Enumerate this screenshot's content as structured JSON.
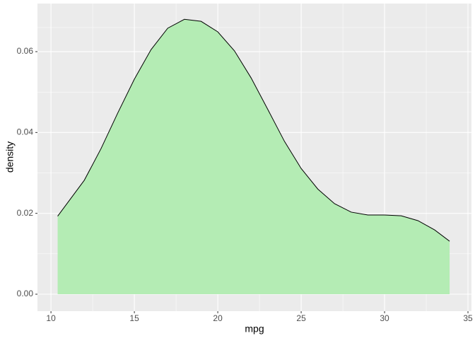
{
  "chart_data": {
    "type": "area",
    "x_label": "mpg",
    "y_label": "density",
    "x": [
      10.4,
      12,
      13,
      14,
      15,
      16,
      17,
      18,
      19,
      20,
      21,
      22,
      23,
      24,
      25,
      26,
      27,
      28,
      29,
      30,
      31,
      32,
      33,
      33.9
    ],
    "values": [
      0.0193,
      0.0282,
      0.036,
      0.0448,
      0.0532,
      0.0605,
      0.0658,
      0.068,
      0.0675,
      0.0649,
      0.0602,
      0.0535,
      0.0457,
      0.0378,
      0.0311,
      0.026,
      0.0224,
      0.0203,
      0.0196,
      0.0196,
      0.0194,
      0.0182,
      0.0159,
      0.0131
    ],
    "color": "#b4ecb4",
    "line_color": "#000000",
    "xlim": [
      9.19,
      35.21
    ],
    "ylim": [
      -0.0042,
      0.0719
    ],
    "xticks": [
      10,
      15,
      20,
      25,
      30,
      35
    ],
    "yticks": [
      {
        "value": 0,
        "label": "0.00"
      },
      0.02,
      0.04,
      0.06
    ],
    "grid": true
  }
}
